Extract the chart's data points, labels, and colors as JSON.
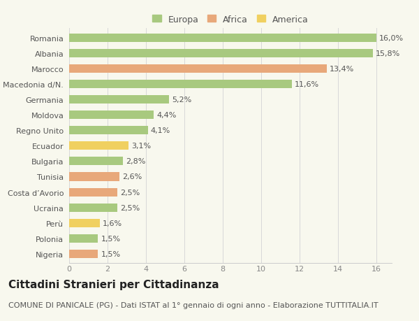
{
  "categories": [
    "Romania",
    "Albania",
    "Marocco",
    "Macedonia d/N.",
    "Germania",
    "Moldova",
    "Regno Unito",
    "Ecuador",
    "Bulgaria",
    "Tunisia",
    "Costa d’Avorio",
    "Ucraina",
    "Perù",
    "Polonia",
    "Nigeria"
  ],
  "values": [
    16.0,
    15.8,
    13.4,
    11.6,
    5.2,
    4.4,
    4.1,
    3.1,
    2.8,
    2.6,
    2.5,
    2.5,
    1.6,
    1.5,
    1.5
  ],
  "continents": [
    "Europa",
    "Europa",
    "Africa",
    "Europa",
    "Europa",
    "Europa",
    "Europa",
    "America",
    "Europa",
    "Africa",
    "Africa",
    "Europa",
    "America",
    "Europa",
    "Africa"
  ],
  "labels": [
    "16,0%",
    "15,8%",
    "13,4%",
    "11,6%",
    "5,2%",
    "4,4%",
    "4,1%",
    "3,1%",
    "2,8%",
    "2,6%",
    "2,5%",
    "2,5%",
    "1,6%",
    "1,5%",
    "1,5%"
  ],
  "colors": {
    "Europa": "#a8c97f",
    "Africa": "#e8a87a",
    "America": "#f0d060"
  },
  "legend_labels": [
    "Europa",
    "Africa",
    "America"
  ],
  "xlim": [
    0,
    16
  ],
  "xticks": [
    0,
    2,
    4,
    6,
    8,
    10,
    12,
    14,
    16
  ],
  "title": "Cittadini Stranieri per Cittadinanza",
  "subtitle": "COMUNE DI PANICALE (PG) - Dati ISTAT al 1° gennaio di ogni anno - Elaborazione TUTTITALIA.IT",
  "background_color": "#f8f8ee",
  "bar_height": 0.55,
  "title_fontsize": 11,
  "subtitle_fontsize": 8,
  "label_fontsize": 8,
  "tick_fontsize": 8,
  "legend_fontsize": 9
}
